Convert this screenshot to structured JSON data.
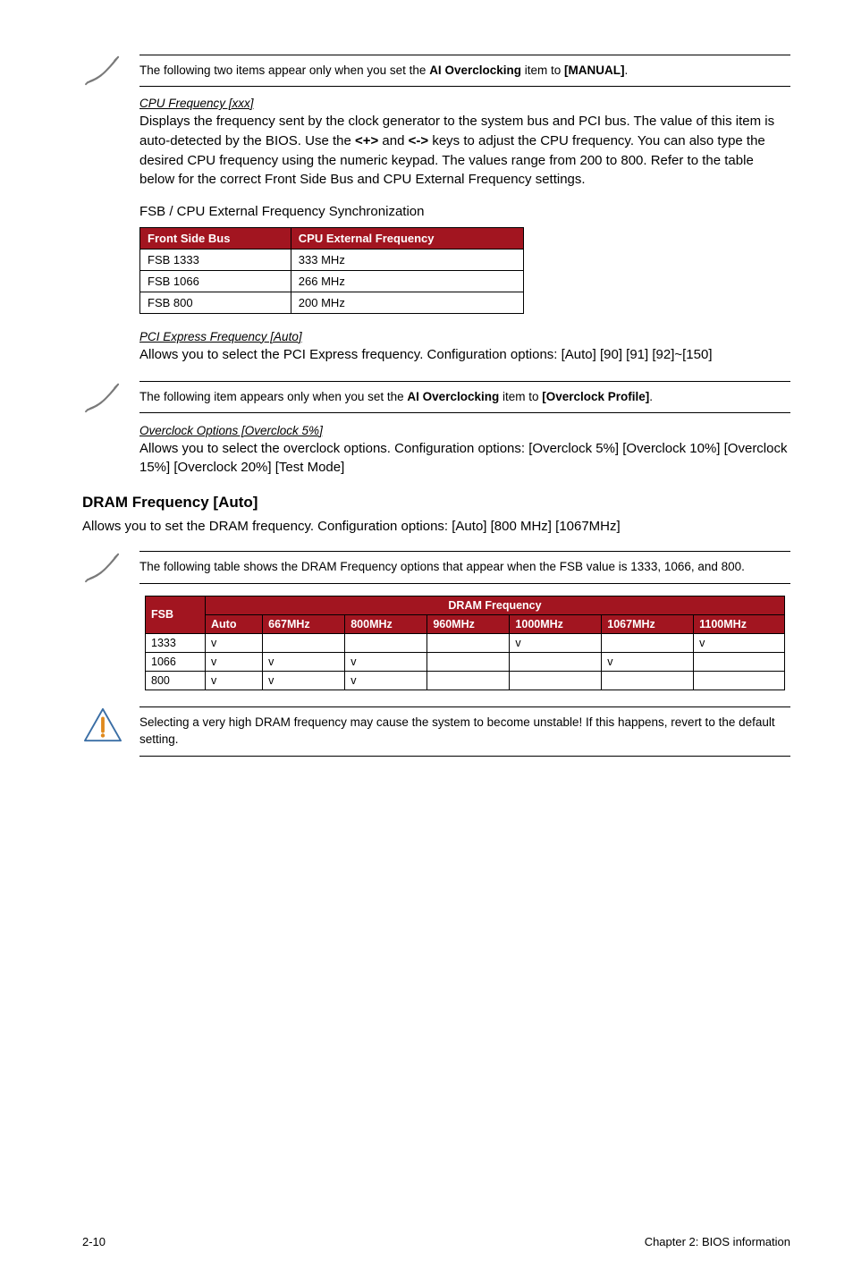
{
  "notes": {
    "manual_note": "The following two items appear only when you set the <b>AI Overclocking</b> item to <b>[MANUAL]</b>.",
    "profile_note": "The following item appears only when you set the <b>AI Overclocking</b> item to <b>[Overclock Profile]</b>.",
    "dram_table_note": "The following table shows the DRAM Frequency options that appear when the FSB value is 1333, 1066, and 800.",
    "caution_note": "Selecting a very high DRAM frequency may cause the system to become unstable! If this happens, revert to the default setting."
  },
  "cpu_freq": {
    "heading": "CPU Frequency [xxx]",
    "text": "Displays the frequency sent by the clock generator to the system bus and PCI bus. The value of this item is auto-detected by the BIOS. Use the <b>&lt;+&gt;</b> and <b>&lt;-&gt;</b> keys to adjust the CPU frequency. You can also type the desired CPU frequency using the numeric keypad. The values range from 200 to 800. Refer to the table below for the correct Front Side Bus and CPU External Frequency settings.",
    "sync_heading": "FSB / CPU External Frequency Synchronization"
  },
  "fsb_table": {
    "columns": [
      "Front Side Bus",
      "CPU External Frequency"
    ],
    "rows": [
      [
        "FSB 1333",
        "333 MHz"
      ],
      [
        "FSB 1066",
        "266 MHz"
      ],
      [
        "FSB 800",
        "200 MHz"
      ]
    ],
    "header_bg": "#a21520",
    "header_fg": "#ffffff",
    "border_color": "#000000"
  },
  "pci": {
    "heading": "PCI Express Frequency [Auto]",
    "text": "Allows you to select the PCI Express frequency. Configuration options: [Auto] [90] [91] [92]~[150]"
  },
  "overclock": {
    "heading": "Overclock Options [Overclock 5%]",
    "text": "Allows you to select the overclock options. Configuration options: [Overclock 5%] [Overclock 10%] [Overclock 15%] [Overclock 20%] [Test Mode]"
  },
  "dram_section": {
    "heading": "DRAM Frequency [Auto]",
    "text": "Allows you to set the DRAM frequency. Configuration options: [Auto] [800 MHz] [1067MHz]"
  },
  "dram_table": {
    "fsb_label": "FSB",
    "group_label": "DRAM Frequency",
    "columns": [
      "Auto",
      "667MHz",
      "800MHz",
      "960MHz",
      "1000MHz",
      "1067MHz",
      "1100MHz"
    ],
    "rows": [
      {
        "fsb": "1333",
        "marks": [
          "v",
          "",
          "",
          "",
          "v",
          "",
          "v"
        ]
      },
      {
        "fsb": "1066",
        "marks": [
          "v",
          "v",
          "v",
          "",
          "",
          "v",
          ""
        ]
      },
      {
        "fsb": "800",
        "marks": [
          "v",
          "v",
          "v",
          "",
          "",
          "",
          ""
        ]
      }
    ],
    "header_bg": "#a21520",
    "header_fg": "#ffffff",
    "border_color": "#000000",
    "mark_char": "v"
  },
  "footer": {
    "left": "2-10",
    "right": "Chapter 2: BIOS information"
  },
  "icons": {
    "pencil_stroke": "#7a7a7a",
    "caution_stroke": "#3a6ea5",
    "caution_fill": "#ffffff",
    "caution_bang": "#e08a1e"
  }
}
